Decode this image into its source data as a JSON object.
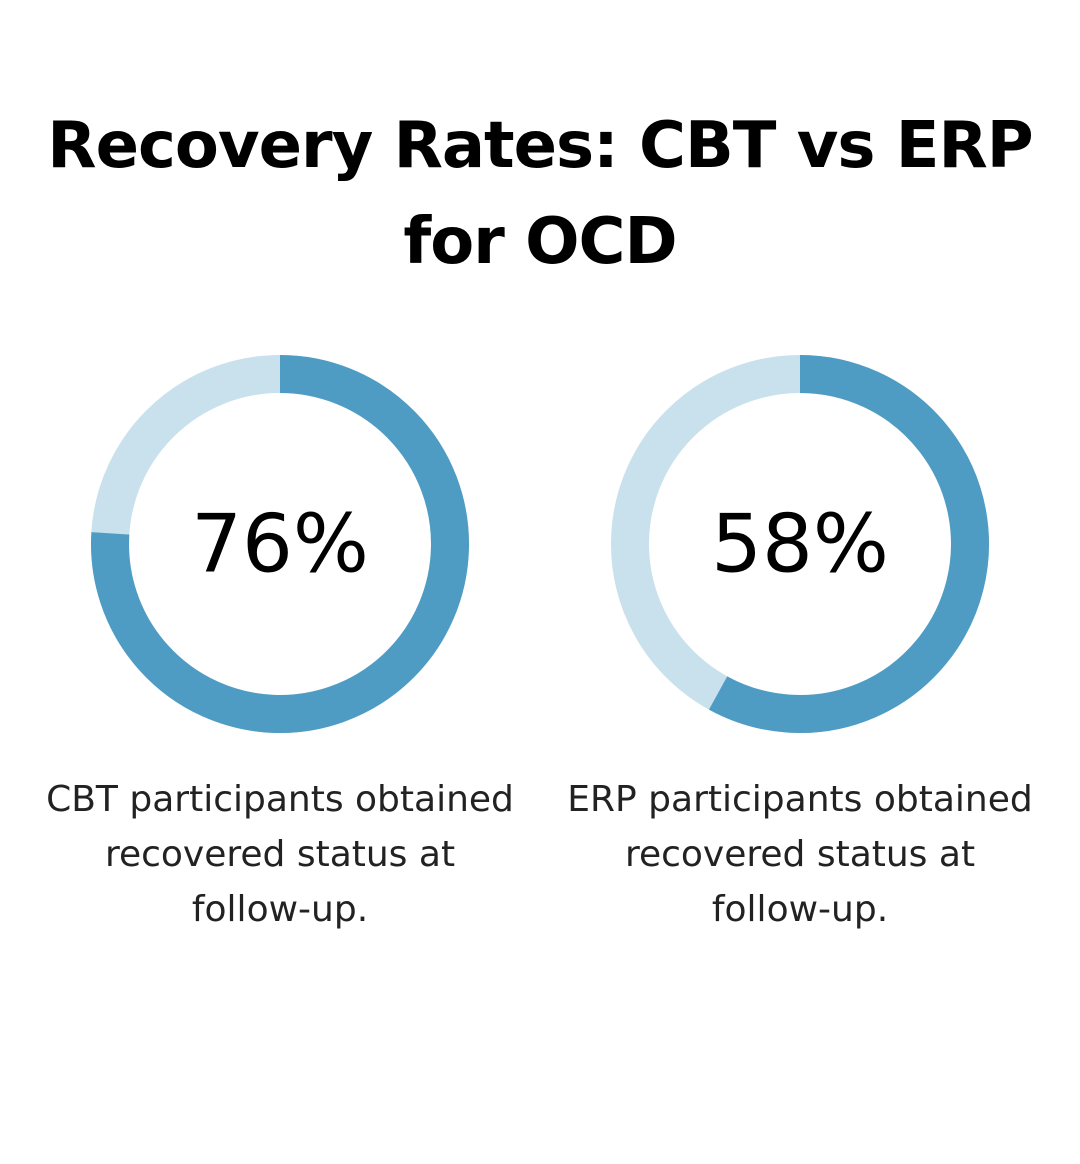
{
  "title": "Recovery Rates: CBT vs ERP for OCD",
  "colors": {
    "filled": "#4e9cc3",
    "track": "#c8e1ec",
    "text": "#000000"
  },
  "chart_data": [
    {
      "type": "pie",
      "variant": "donut",
      "value": 76,
      "max": 100,
      "label": "76%",
      "caption": "CBT participants obtained recovered status at follow-up."
    },
    {
      "type": "pie",
      "variant": "donut",
      "value": 58,
      "max": 100,
      "label": "58%",
      "caption": "ERP participants obtained recovered status at follow-up."
    }
  ]
}
